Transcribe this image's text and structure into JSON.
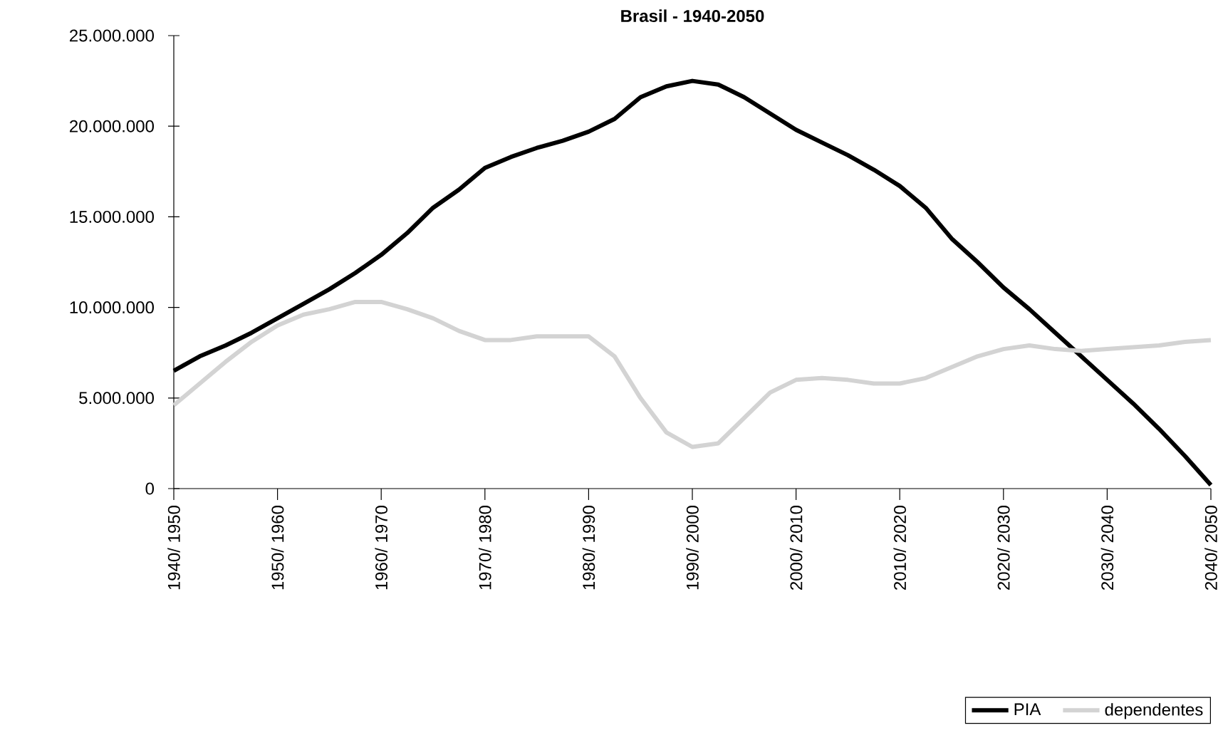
{
  "chart_data": {
    "type": "line",
    "title": "Brasil - 1940-2050",
    "categories": [
      "1940/ 1950",
      null,
      null,
      null,
      "1950/ 1960",
      null,
      null,
      null,
      "1960/ 1970",
      null,
      null,
      null,
      "1970/ 1980",
      null,
      null,
      null,
      "1980/ 1990",
      null,
      null,
      null,
      "1990/ 2000",
      null,
      null,
      null,
      "2000/ 2010",
      null,
      null,
      null,
      "2010/ 2020",
      null,
      null,
      null,
      "2020/ 2030",
      null,
      null,
      null,
      "2030/ 2040",
      null,
      null,
      null,
      "2040/ 2050"
    ],
    "series": [
      {
        "name": "PIA",
        "color": "#000000",
        "values": [
          6500000,
          7300000,
          7900000,
          8600000,
          9400000,
          10200000,
          11000000,
          11900000,
          12900000,
          14100000,
          15500000,
          16500000,
          17700000,
          18300000,
          18800000,
          19200000,
          19700000,
          20400000,
          21600000,
          22200000,
          22500000,
          22300000,
          21600000,
          20700000,
          19800000,
          19100000,
          18400000,
          17600000,
          16700000,
          15500000,
          13800000,
          12500000,
          11100000,
          9900000,
          8600000,
          7300000,
          6000000,
          4700000,
          3300000,
          1800000,
          200000
        ]
      },
      {
        "name": "dependentes",
        "color": "#d3d3d3",
        "values": [
          4600000,
          5800000,
          7000000,
          8100000,
          9000000,
          9600000,
          9900000,
          10300000,
          10300000,
          9900000,
          9400000,
          8700000,
          8200000,
          8200000,
          8400000,
          8400000,
          8400000,
          7300000,
          5000000,
          3100000,
          2300000,
          2500000,
          3900000,
          5300000,
          6000000,
          6100000,
          6000000,
          5800000,
          5800000,
          6100000,
          6700000,
          7300000,
          7700000,
          7900000,
          7700000,
          7600000,
          7700000,
          7800000,
          7900000,
          8100000,
          8200000
        ]
      }
    ],
    "ylim": [
      0,
      25000000
    ],
    "yticks": [
      0,
      {
        "value": 5000000,
        "label": "5.000.000"
      },
      {
        "value": 10000000,
        "label": "10.000.000"
      },
      {
        "value": 15000000,
        "label": "15.000.000"
      },
      {
        "value": 20000000,
        "label": "20.000.000"
      },
      {
        "value": 25000000,
        "label": "25.000.000"
      }
    ],
    "legend": "bottom right",
    "grid": false,
    "marker": "none",
    "line_style": "solid"
  }
}
